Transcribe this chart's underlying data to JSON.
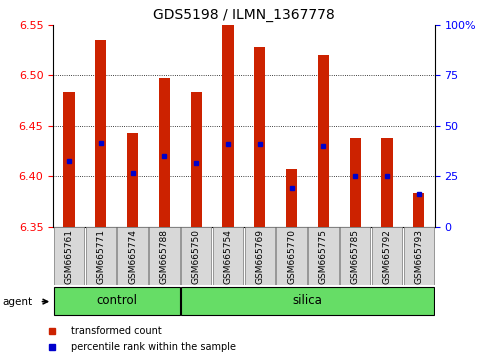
{
  "title": "GDS5198 / ILMN_1367778",
  "samples": [
    "GSM665761",
    "GSM665771",
    "GSM665774",
    "GSM665788",
    "GSM665750",
    "GSM665754",
    "GSM665769",
    "GSM665770",
    "GSM665775",
    "GSM665785",
    "GSM665792",
    "GSM665793"
  ],
  "groups": [
    "control",
    "control",
    "control",
    "control",
    "silica",
    "silica",
    "silica",
    "silica",
    "silica",
    "silica",
    "silica",
    "silica"
  ],
  "bar_tops": [
    6.483,
    6.535,
    6.443,
    6.497,
    6.483,
    6.553,
    6.528,
    6.407,
    6.52,
    6.438,
    6.438,
    6.383
  ],
  "bar_bottoms": [
    6.35,
    6.35,
    6.35,
    6.35,
    6.35,
    6.35,
    6.35,
    6.35,
    6.35,
    6.35,
    6.35,
    6.35
  ],
  "blue_markers": [
    6.415,
    6.433,
    6.403,
    6.42,
    6.413,
    6.432,
    6.432,
    6.388,
    6.43,
    6.4,
    6.4,
    6.382
  ],
  "bar_color": "#CC2200",
  "marker_color": "#0000CC",
  "ylim_left": [
    6.35,
    6.55
  ],
  "yticks_left": [
    6.35,
    6.4,
    6.45,
    6.5,
    6.55
  ],
  "ylim_right": [
    0,
    100
  ],
  "yticks_right": [
    0,
    25,
    50,
    75,
    100
  ],
  "yticklabels_right": [
    "0",
    "25",
    "50",
    "75",
    "100%"
  ],
  "bar_width": 0.35,
  "agent_label": "agent",
  "legend_items": [
    {
      "label": "transformed count",
      "color": "#CC2200"
    },
    {
      "label": "percentile rank within the sample",
      "color": "#0000CC"
    }
  ],
  "control_count": 4,
  "silica_count": 8,
  "figsize": [
    4.83,
    3.54
  ],
  "dpi": 100
}
